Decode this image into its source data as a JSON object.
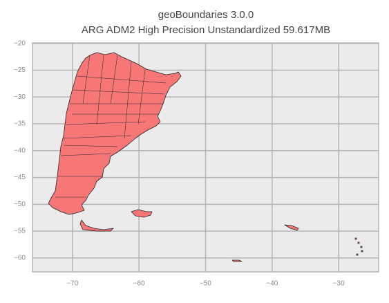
{
  "chart_data": {
    "type": "map",
    "title": "geoBoundaries 3.0.0",
    "subtitle": "ARG ADM2 High Precision Unstandardized 59.617MB",
    "xlim": [
      -76.0,
      -24.0
    ],
    "ylim": [
      -62.6,
      -19.9
    ],
    "xticks": [
      {
        "value": -70,
        "label": "−70"
      },
      {
        "value": -60,
        "label": "−60"
      },
      {
        "value": -50,
        "label": "−50"
      },
      {
        "value": -40,
        "label": "−40"
      },
      {
        "value": -30,
        "label": "−30"
      }
    ],
    "yticks": [
      {
        "value": -20,
        "label": "−20"
      },
      {
        "value": -25,
        "label": "−25"
      },
      {
        "value": -30,
        "label": "−30"
      },
      {
        "value": -35,
        "label": "−35"
      },
      {
        "value": -40,
        "label": "−40"
      },
      {
        "value": -45,
        "label": "−45"
      },
      {
        "value": -50,
        "label": "−50"
      },
      {
        "value": -55,
        "label": "−55"
      },
      {
        "value": -60,
        "label": "−60"
      }
    ],
    "grid": true,
    "color": "#f77777"
  }
}
